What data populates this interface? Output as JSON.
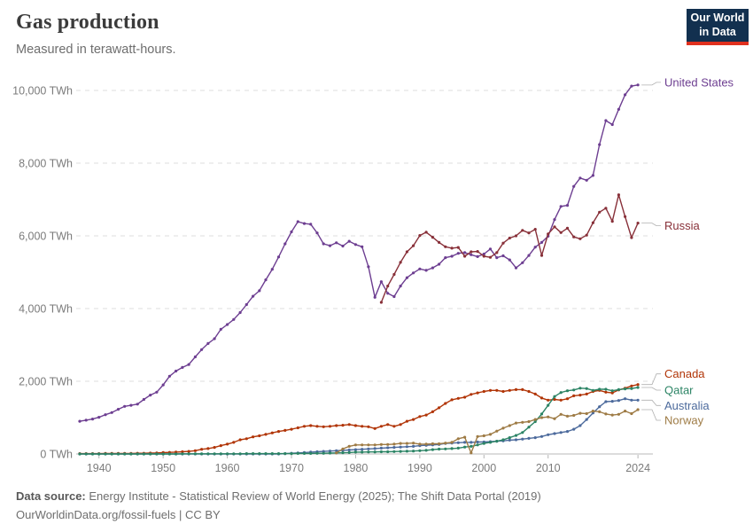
{
  "header": {
    "title": "Gas production",
    "subtitle": "Measured in terawatt-hours.",
    "logo": {
      "line1": "Our World",
      "line2": "in Data"
    }
  },
  "chart_data": {
    "type": "line",
    "title": "Gas production",
    "unit": "TWh",
    "grid": "horizontal-dashed",
    "legend_position": "right-edge-labels",
    "x_range": [
      1937,
      2025.5
    ],
    "y_range": [
      0,
      10500
    ],
    "x_ticks": [
      1940,
      1950,
      1960,
      1970,
      1980,
      1990,
      2000,
      2010,
      2024
    ],
    "y_ticks": [
      0,
      2000,
      4000,
      6000,
      8000,
      10000
    ],
    "y_tick_suffix": " TWh",
    "series": [
      {
        "name": "United States",
        "slug": "united-states",
        "color": "#6d3e91",
        "start_year": 1937,
        "values": [
          900,
          930,
          960,
          1010,
          1080,
          1140,
          1230,
          1310,
          1340,
          1370,
          1500,
          1620,
          1700,
          1900,
          2140,
          2280,
          2380,
          2460,
          2670,
          2870,
          3040,
          3170,
          3430,
          3560,
          3700,
          3890,
          4110,
          4340,
          4490,
          4790,
          5080,
          5420,
          5780,
          6110,
          6390,
          6340,
          6320,
          6080,
          5780,
          5730,
          5810,
          5720,
          5850,
          5760,
          5700,
          5150,
          4310,
          4740,
          4420,
          4330,
          4620,
          4850,
          4980,
          5090,
          5050,
          5120,
          5220,
          5400,
          5440,
          5520,
          5540,
          5480,
          5430,
          5500,
          5640,
          5400,
          5450,
          5340,
          5120,
          5260,
          5460,
          5690,
          5820,
          5990,
          6450,
          6810,
          6840,
          7360,
          7590,
          7530,
          7660,
          8510,
          9170,
          9060,
          9480,
          9880,
          10120,
          10150
        ]
      },
      {
        "name": "Russia",
        "slug": "russia",
        "color": "#883039",
        "start_year": 1984,
        "values": [
          4170,
          4620,
          4940,
          5270,
          5560,
          5730,
          6010,
          6100,
          5960,
          5820,
          5700,
          5660,
          5680,
          5440,
          5560,
          5570,
          5440,
          5410,
          5540,
          5800,
          5940,
          6000,
          6150,
          6080,
          6180,
          5460,
          6050,
          6250,
          6090,
          6210,
          5970,
          5920,
          6020,
          6360,
          6650,
          6760,
          6400,
          7130,
          6530,
          5950,
          6350
        ]
      },
      {
        "name": "Canada",
        "slug": "canada",
        "color": "#b13507",
        "start_year": 1937,
        "values": [
          10,
          10,
          10,
          10,
          15,
          15,
          15,
          15,
          15,
          20,
          20,
          25,
          30,
          40,
          45,
          50,
          60,
          70,
          90,
          130,
          150,
          180,
          230,
          270,
          320,
          390,
          420,
          470,
          500,
          540,
          580,
          620,
          650,
          680,
          720,
          760,
          780,
          760,
          750,
          760,
          780,
          790,
          810,
          780,
          760,
          750,
          700,
          760,
          810,
          760,
          810,
          900,
          950,
          1030,
          1070,
          1160,
          1270,
          1390,
          1490,
          1530,
          1560,
          1640,
          1680,
          1720,
          1750,
          1750,
          1720,
          1750,
          1770,
          1770,
          1720,
          1650,
          1540,
          1480,
          1500,
          1480,
          1520,
          1600,
          1620,
          1650,
          1720,
          1750,
          1700,
          1680,
          1760,
          1810,
          1870,
          1910
        ]
      },
      {
        "name": "Australia",
        "slug": "australia",
        "color": "#4c6a9c",
        "start_year": 1937,
        "values": [
          0,
          0,
          0,
          0,
          0,
          0,
          0,
          0,
          0,
          0,
          0,
          0,
          0,
          0,
          0,
          0,
          0,
          0,
          0,
          0,
          0,
          0,
          0,
          0,
          0,
          0,
          0,
          0,
          0,
          0,
          0,
          0,
          10,
          20,
          30,
          40,
          50,
          60,
          70,
          80,
          90,
          100,
          110,
          120,
          130,
          140,
          150,
          160,
          170,
          180,
          190,
          200,
          210,
          230,
          240,
          250,
          260,
          290,
          300,
          310,
          320,
          320,
          330,
          330,
          340,
          350,
          360,
          380,
          390,
          410,
          430,
          450,
          480,
          530,
          560,
          590,
          620,
          680,
          780,
          950,
          1130,
          1300,
          1440,
          1450,
          1470,
          1520,
          1480,
          1480
        ]
      },
      {
        "name": "Qatar",
        "slug": "qatar",
        "color": "#2c8465",
        "start_year": 1937,
        "values": [
          0,
          0,
          0,
          0,
          0,
          0,
          0,
          0,
          0,
          0,
          0,
          0,
          0,
          0,
          0,
          0,
          5,
          5,
          5,
          5,
          5,
          5,
          5,
          5,
          5,
          5,
          10,
          10,
          10,
          10,
          10,
          10,
          10,
          10,
          15,
          15,
          15,
          20,
          20,
          25,
          30,
          35,
          40,
          50,
          50,
          55,
          55,
          60,
          60,
          65,
          70,
          75,
          80,
          90,
          100,
          120,
          135,
          140,
          150,
          160,
          190,
          210,
          250,
          290,
          320,
          350,
          390,
          450,
          510,
          590,
          740,
          890,
          1100,
          1340,
          1580,
          1690,
          1740,
          1760,
          1810,
          1800,
          1750,
          1780,
          1780,
          1740,
          1770,
          1790,
          1800,
          1830
        ]
      },
      {
        "name": "Norway",
        "slug": "norway",
        "color": "#9e7b45",
        "start_year": 1977,
        "values": [
          30,
          140,
          210,
          250,
          250,
          250,
          250,
          260,
          260,
          270,
          290,
          290,
          300,
          270,
          270,
          280,
          280,
          300,
          320,
          420,
          460,
          30,
          480,
          500,
          540,
          630,
          710,
          780,
          850,
          870,
          890,
          950,
          1000,
          1020,
          970,
          1090,
          1040,
          1060,
          1120,
          1110,
          1180,
          1160,
          1100,
          1070,
          1090,
          1180,
          1110,
          1220
        ]
      }
    ]
  },
  "footer": {
    "datasource_label": "Data source:",
    "datasource_text": " Energy Institute - Statistical Review of World Energy (2025); The Shift Data Portal (2019)",
    "permalink": "OurWorldinData.org/fossil-fuels",
    "separator": " | ",
    "license": "CC BY"
  }
}
